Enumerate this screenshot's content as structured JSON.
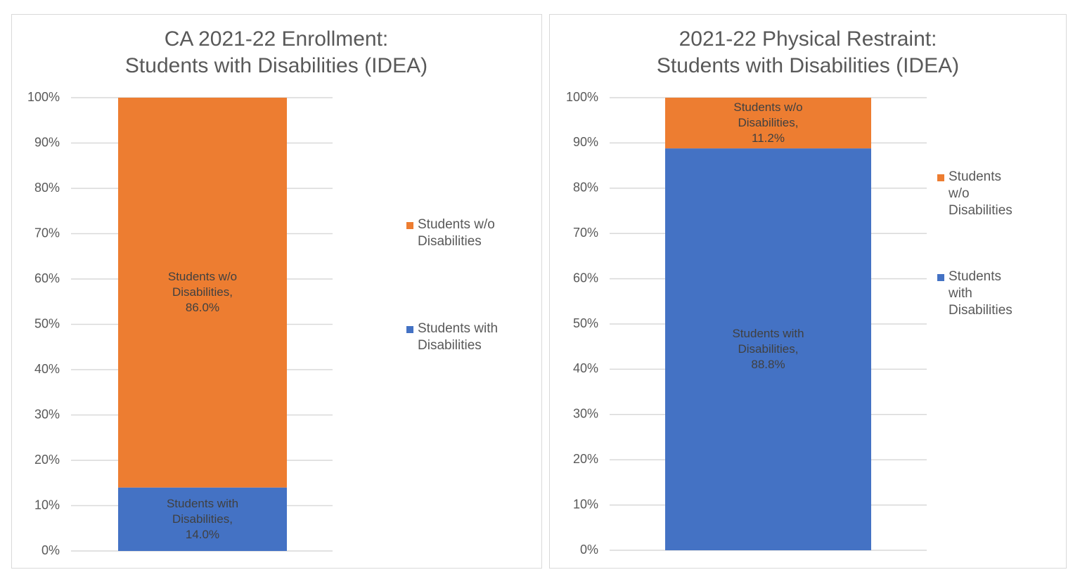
{
  "chart_data": [
    {
      "type": "stacked_bar",
      "title": [
        "CA 2021-22 Enrollment:",
        "Students with Disabilities (IDEA)"
      ],
      "categories": [
        null
      ],
      "series": [
        {
          "name": "Students with Disabilities",
          "color": "#4472c4",
          "values": [
            14.0
          ],
          "value_labels": [
            "Students with Disabilities, 14.0%"
          ]
        },
        {
          "name": "Students w/o Disabilities",
          "color": "#ed7d31",
          "values": [
            86.0
          ],
          "value_labels": [
            "Students w/o Disabilities, 86.0%"
          ]
        }
      ],
      "ylim": [
        0,
        100
      ],
      "yticks": [
        {
          "value": 0,
          "label": "0%"
        },
        {
          "value": 10,
          "label": "10%"
        },
        {
          "value": 20,
          "label": "20%"
        },
        {
          "value": 30,
          "label": "30%"
        },
        {
          "value": 40,
          "label": "40%"
        },
        {
          "value": 50,
          "label": "50%"
        },
        {
          "value": 60,
          "label": "60%"
        },
        {
          "value": 70,
          "label": "70%"
        },
        {
          "value": 80,
          "label": "80%"
        },
        {
          "value": 90,
          "label": "90%"
        },
        {
          "value": 100,
          "label": "100%"
        }
      ],
      "grid": true,
      "legend": "right"
    },
    {
      "type": "stacked_bar",
      "title": [
        "2021-22 Physical Restraint:",
        "Students with Disabilities (IDEA)"
      ],
      "categories": [
        null
      ],
      "series": [
        {
          "name": "Students with Disabilities",
          "color": "#4472c4",
          "values": [
            88.8
          ],
          "value_labels": [
            "Students with Disabilities, 88.8%"
          ]
        },
        {
          "name": "Students w/o Disabilities",
          "color": "#ed7d31",
          "values": [
            11.2
          ],
          "value_labels": [
            "Students w/o Disabilities, 11.2%"
          ]
        }
      ],
      "ylim": [
        0,
        100
      ],
      "yticks": [
        {
          "value": 0,
          "label": "0%"
        },
        {
          "value": 10,
          "label": "10%"
        },
        {
          "value": 20,
          "label": "20%"
        },
        {
          "value": 30,
          "label": "30%"
        },
        {
          "value": 40,
          "label": "40%"
        },
        {
          "value": 50,
          "label": "50%"
        },
        {
          "value": 60,
          "label": "60%"
        },
        {
          "value": 70,
          "label": "70%"
        },
        {
          "value": 80,
          "label": "80%"
        },
        {
          "value": 90,
          "label": "90%"
        },
        {
          "value": 100,
          "label": "100%"
        }
      ],
      "grid": true,
      "legend": "right"
    }
  ]
}
